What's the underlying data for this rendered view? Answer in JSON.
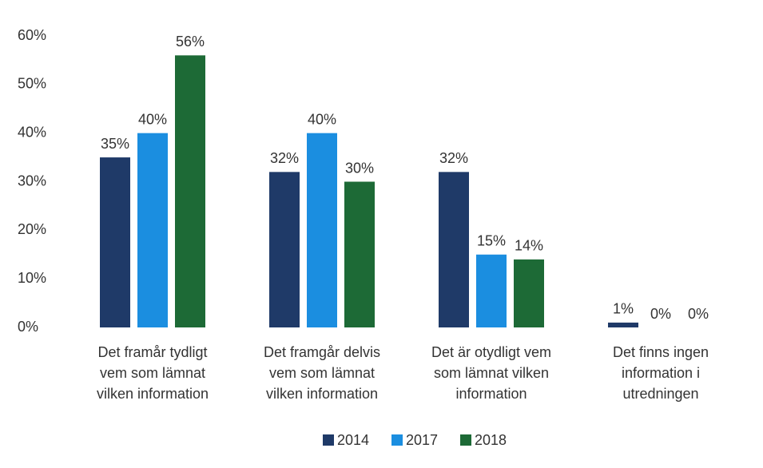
{
  "chart_data": {
    "type": "bar",
    "categories": [
      "Det framår tydligt\nvem som lämnat\nvilken information",
      "Det framgår delvis\nvem som lämnat\nvilken information",
      "Det är otydligt vem\nsom lämnat vilken\ninformation",
      "Det finns ingen\ninformation i\nutredningen"
    ],
    "series": [
      {
        "name": "2014",
        "color": "#1f3a68",
        "values": [
          35,
          32,
          32,
          1
        ],
        "value_labels": [
          "35%",
          "32%",
          "32%",
          "1%"
        ]
      },
      {
        "name": "2017",
        "color": "#1b8ee0",
        "values": [
          40,
          40,
          15,
          0
        ],
        "value_labels": [
          "40%",
          "40%",
          "15%",
          "0%"
        ]
      },
      {
        "name": "2018",
        "color": "#1d6a36",
        "values": [
          56,
          30,
          14,
          0
        ],
        "value_labels": [
          "56%",
          "30%",
          "14%",
          "0%"
        ]
      }
    ],
    "ylim": [
      0,
      60
    ],
    "yticks": [
      {
        "value": 0,
        "label": "0%"
      },
      {
        "value": 10,
        "label": "10%"
      },
      {
        "value": 20,
        "label": "20%"
      },
      {
        "value": 30,
        "label": "30%"
      },
      {
        "value": 40,
        "label": "40%"
      },
      {
        "value": 50,
        "label": "50%"
      },
      {
        "value": 60,
        "label": "60%"
      }
    ],
    "grid": false,
    "legend": "bottom"
  }
}
